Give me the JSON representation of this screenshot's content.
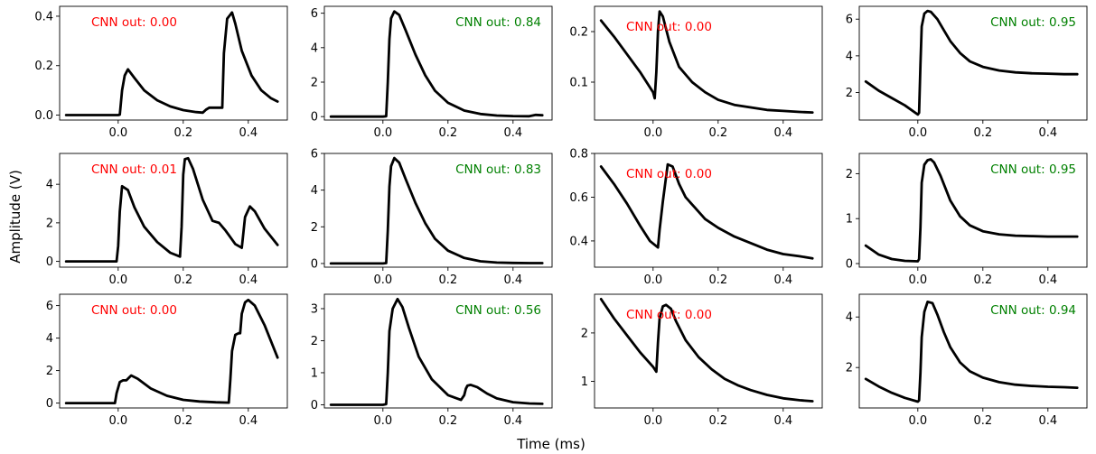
{
  "figure": {
    "xlabel": "Time (ms)",
    "ylabel": "Amplitude (V)",
    "annotation_prefix": "CNN out: ",
    "colors": {
      "reject": "#ff0000",
      "accept": "#008000",
      "trace": "#000000"
    }
  },
  "chart_data": [
    {
      "type": "line",
      "xlim": [
        -0.18,
        0.52
      ],
      "ylim": [
        -0.02,
        0.44
      ],
      "xticks": [
        0.0,
        0.2,
        0.4
      ],
      "yticks": [
        0.0,
        0.2,
        0.4
      ],
      "annotation": "CNN out: 0.00",
      "status": "reject",
      "series": [
        {
          "x": [
            -0.16,
            0.0,
            0.005,
            0.012,
            0.02,
            0.03,
            0.05,
            0.08,
            0.12,
            0.16,
            0.2,
            0.24,
            0.26,
            0.27,
            0.28,
            0.29,
            0.3,
            0.32,
            0.325,
            0.335,
            0.35,
            0.36,
            0.38,
            0.41,
            0.44,
            0.47,
            0.49
          ],
          "y": [
            0.0,
            0.0,
            0.002,
            0.1,
            0.16,
            0.185,
            0.15,
            0.1,
            0.06,
            0.035,
            0.02,
            0.012,
            0.01,
            0.022,
            0.03,
            0.03,
            0.03,
            0.03,
            0.25,
            0.39,
            0.415,
            0.37,
            0.26,
            0.16,
            0.1,
            0.068,
            0.055
          ]
        }
      ]
    },
    {
      "type": "line",
      "xlim": [
        -0.18,
        0.52
      ],
      "ylim": [
        -0.2,
        6.4
      ],
      "xticks": [
        0.0,
        0.2,
        0.4
      ],
      "yticks": [
        0,
        2,
        4,
        6
      ],
      "annotation": "CNN out: 0.84",
      "status": "accept",
      "series": [
        {
          "x": [
            -0.16,
            0.0,
            0.01,
            0.015,
            0.02,
            0.025,
            0.035,
            0.05,
            0.07,
            0.1,
            0.13,
            0.16,
            0.2,
            0.25,
            0.3,
            0.35,
            0.4,
            0.45,
            0.47,
            0.49
          ],
          "y": [
            0.0,
            0.0,
            0.02,
            2.0,
            4.5,
            5.7,
            6.1,
            5.9,
            5.0,
            3.6,
            2.4,
            1.5,
            0.8,
            0.35,
            0.15,
            0.06,
            0.03,
            0.02,
            0.1,
            0.08
          ]
        }
      ]
    },
    {
      "type": "line",
      "xlim": [
        -0.18,
        0.52
      ],
      "ylim": [
        0.025,
        0.25
      ],
      "xticks": [
        0.0,
        0.2,
        0.4
      ],
      "yticks": [
        0.1,
        0.2
      ],
      "annotation": "CNN out: 0.00",
      "status": "reject",
      "series": [
        {
          "x": [
            -0.16,
            -0.12,
            -0.08,
            -0.04,
            0.0,
            0.005,
            0.01,
            0.015,
            0.02,
            0.03,
            0.05,
            0.08,
            0.12,
            0.16,
            0.2,
            0.25,
            0.3,
            0.35,
            0.4,
            0.45,
            0.49
          ],
          "y": [
            0.222,
            0.19,
            0.155,
            0.12,
            0.08,
            0.068,
            0.12,
            0.2,
            0.24,
            0.23,
            0.18,
            0.13,
            0.1,
            0.08,
            0.065,
            0.055,
            0.05,
            0.045,
            0.043,
            0.041,
            0.04
          ]
        }
      ]
    },
    {
      "type": "line",
      "xlim": [
        -0.18,
        0.52
      ],
      "ylim": [
        0.5,
        6.7
      ],
      "xticks": [
        0.0,
        0.2,
        0.4
      ],
      "yticks": [
        2,
        4,
        6
      ],
      "annotation": "CNN out: 0.95",
      "status": "accept",
      "series": [
        {
          "x": [
            -0.16,
            -0.12,
            -0.08,
            -0.04,
            0.0,
            0.004,
            0.008,
            0.012,
            0.02,
            0.03,
            0.04,
            0.06,
            0.08,
            0.1,
            0.13,
            0.16,
            0.2,
            0.25,
            0.3,
            0.35,
            0.4,
            0.45,
            0.49
          ],
          "y": [
            2.6,
            2.1,
            1.7,
            1.3,
            0.8,
            0.9,
            3.5,
            5.6,
            6.3,
            6.45,
            6.4,
            6.0,
            5.4,
            4.8,
            4.15,
            3.7,
            3.4,
            3.2,
            3.1,
            3.05,
            3.03,
            3.0,
            3.0
          ]
        }
      ]
    },
    {
      "type": "line",
      "xlim": [
        -0.18,
        0.52
      ],
      "ylim": [
        -0.3,
        5.6
      ],
      "xticks": [
        0.0,
        0.2,
        0.4
      ],
      "yticks": [
        0,
        2,
        4
      ],
      "annotation": "CNN out: 0.01",
      "status": "reject",
      "series": [
        {
          "x": [
            -0.16,
            -0.005,
            0.0,
            0.005,
            0.012,
            0.03,
            0.05,
            0.08,
            0.12,
            0.16,
            0.19,
            0.195,
            0.2,
            0.205,
            0.215,
            0.23,
            0.26,
            0.29,
            0.31,
            0.33,
            0.36,
            0.38,
            0.385,
            0.39,
            0.405,
            0.42,
            0.45,
            0.49
          ],
          "y": [
            0.0,
            0.0,
            0.8,
            2.6,
            3.9,
            3.7,
            2.8,
            1.8,
            1.0,
            0.45,
            0.25,
            1.8,
            4.5,
            5.3,
            5.35,
            4.8,
            3.2,
            2.1,
            2.0,
            1.6,
            0.9,
            0.7,
            1.5,
            2.3,
            2.85,
            2.6,
            1.7,
            0.85
          ]
        }
      ]
    },
    {
      "type": "line",
      "xlim": [
        -0.18,
        0.52
      ],
      "ylim": [
        -0.2,
        6.0
      ],
      "xticks": [
        0.0,
        0.2,
        0.4
      ],
      "yticks": [
        0,
        2,
        4,
        6
      ],
      "annotation": "CNN out: 0.83",
      "status": "accept",
      "series": [
        {
          "x": [
            -0.16,
            0.0,
            0.01,
            0.015,
            0.02,
            0.025,
            0.035,
            0.05,
            0.07,
            0.1,
            0.13,
            0.16,
            0.2,
            0.25,
            0.3,
            0.35,
            0.4,
            0.45,
            0.49
          ],
          "y": [
            0.0,
            0.0,
            0.02,
            1.8,
            4.2,
            5.3,
            5.75,
            5.5,
            4.6,
            3.3,
            2.2,
            1.35,
            0.7,
            0.3,
            0.12,
            0.05,
            0.03,
            0.02,
            0.02
          ]
        }
      ]
    },
    {
      "type": "line",
      "xlim": [
        -0.18,
        0.52
      ],
      "ylim": [
        0.28,
        0.8
      ],
      "xticks": [
        0.0,
        0.2,
        0.4
      ],
      "yticks": [
        0.4,
        0.6,
        0.8
      ],
      "annotation": "CNN out: 0.00",
      "status": "reject",
      "series": [
        {
          "x": [
            -0.16,
            -0.12,
            -0.08,
            -0.04,
            -0.01,
            0.015,
            0.02,
            0.03,
            0.045,
            0.06,
            0.08,
            0.1,
            0.13,
            0.16,
            0.2,
            0.25,
            0.3,
            0.35,
            0.4,
            0.45,
            0.49
          ],
          "y": [
            0.74,
            0.66,
            0.57,
            0.47,
            0.4,
            0.37,
            0.45,
            0.58,
            0.75,
            0.74,
            0.66,
            0.6,
            0.55,
            0.5,
            0.46,
            0.42,
            0.39,
            0.36,
            0.34,
            0.33,
            0.32
          ]
        }
      ]
    },
    {
      "type": "line",
      "xlim": [
        -0.18,
        0.52
      ],
      "ylim": [
        -0.08,
        2.45
      ],
      "xticks": [
        0.0,
        0.2,
        0.4
      ],
      "yticks": [
        0,
        1,
        2
      ],
      "annotation": "CNN out: 0.95",
      "status": "accept",
      "series": [
        {
          "x": [
            -0.16,
            -0.12,
            -0.08,
            -0.04,
            0.0,
            0.004,
            0.008,
            0.012,
            0.02,
            0.03,
            0.04,
            0.05,
            0.07,
            0.1,
            0.13,
            0.16,
            0.2,
            0.25,
            0.3,
            0.35,
            0.4,
            0.45,
            0.49
          ],
          "y": [
            0.4,
            0.2,
            0.1,
            0.06,
            0.05,
            0.1,
            0.8,
            1.8,
            2.2,
            2.3,
            2.32,
            2.25,
            1.95,
            1.4,
            1.05,
            0.85,
            0.72,
            0.65,
            0.62,
            0.61,
            0.6,
            0.6,
            0.6
          ]
        }
      ]
    },
    {
      "type": "line",
      "xlim": [
        -0.18,
        0.52
      ],
      "ylim": [
        -0.3,
        6.7
      ],
      "xticks": [
        0.0,
        0.2,
        0.4
      ],
      "yticks": [
        0,
        2,
        4,
        6
      ],
      "annotation": "CNN out: 0.00",
      "status": "reject",
      "series": [
        {
          "x": [
            -0.16,
            -0.01,
            -0.005,
            0.005,
            0.015,
            0.025,
            0.04,
            0.06,
            0.1,
            0.15,
            0.2,
            0.25,
            0.3,
            0.34,
            0.345,
            0.35,
            0.36,
            0.37,
            0.375,
            0.38,
            0.39,
            0.4,
            0.42,
            0.45,
            0.49
          ],
          "y": [
            0.0,
            0.0,
            0.6,
            1.3,
            1.4,
            1.4,
            1.7,
            1.5,
            0.9,
            0.45,
            0.2,
            0.1,
            0.05,
            0.03,
            1.5,
            3.2,
            4.2,
            4.3,
            4.3,
            5.5,
            6.2,
            6.35,
            6.0,
            4.8,
            2.8
          ]
        }
      ]
    },
    {
      "type": "line",
      "xlim": [
        -0.18,
        0.52
      ],
      "ylim": [
        -0.1,
        3.45
      ],
      "xticks": [
        0.0,
        0.2,
        0.4
      ],
      "yticks": [
        0,
        1,
        2,
        3
      ],
      "annotation": "CNN out: 0.56",
      "status": "accept",
      "series": [
        {
          "x": [
            -0.16,
            0.0,
            0.01,
            0.015,
            0.02,
            0.03,
            0.045,
            0.06,
            0.08,
            0.11,
            0.15,
            0.2,
            0.24,
            0.25,
            0.255,
            0.26,
            0.27,
            0.29,
            0.32,
            0.35,
            0.4,
            0.45,
            0.49
          ],
          "y": [
            0.0,
            0.0,
            0.02,
            1.0,
            2.3,
            3.0,
            3.3,
            3.05,
            2.4,
            1.5,
            0.8,
            0.3,
            0.15,
            0.3,
            0.5,
            0.6,
            0.62,
            0.55,
            0.35,
            0.2,
            0.08,
            0.04,
            0.03
          ]
        }
      ]
    },
    {
      "type": "line",
      "xlim": [
        -0.18,
        0.52
      ],
      "ylim": [
        0.45,
        2.8
      ],
      "xticks": [
        0.0,
        0.2,
        0.4
      ],
      "yticks": [
        1,
        2
      ],
      "annotation": "CNN out: 0.00",
      "status": "reject",
      "series": [
        {
          "x": [
            -0.16,
            -0.12,
            -0.08,
            -0.04,
            0.0,
            0.01,
            0.015,
            0.02,
            0.03,
            0.04,
            0.055,
            0.07,
            0.1,
            0.14,
            0.18,
            0.22,
            0.26,
            0.3,
            0.35,
            0.4,
            0.45,
            0.49
          ],
          "y": [
            2.7,
            2.3,
            1.95,
            1.6,
            1.3,
            1.2,
            1.8,
            2.3,
            2.55,
            2.58,
            2.5,
            2.25,
            1.85,
            1.5,
            1.25,
            1.05,
            0.92,
            0.82,
            0.72,
            0.65,
            0.61,
            0.59
          ]
        }
      ]
    },
    {
      "type": "line",
      "xlim": [
        -0.18,
        0.52
      ],
      "ylim": [
        0.4,
        4.9
      ],
      "xticks": [
        0.0,
        0.2,
        0.4
      ],
      "yticks": [
        2,
        4
      ],
      "annotation": "CNN out: 0.94",
      "status": "accept",
      "series": [
        {
          "x": [
            -0.16,
            -0.12,
            -0.08,
            -0.04,
            0.0,
            0.004,
            0.008,
            0.012,
            0.02,
            0.03,
            0.045,
            0.06,
            0.08,
            0.1,
            0.13,
            0.16,
            0.2,
            0.25,
            0.3,
            0.35,
            0.4,
            0.45,
            0.49
          ],
          "y": [
            1.55,
            1.25,
            1.0,
            0.8,
            0.65,
            0.7,
            1.8,
            3.2,
            4.2,
            4.6,
            4.55,
            4.1,
            3.4,
            2.8,
            2.2,
            1.85,
            1.6,
            1.42,
            1.32,
            1.27,
            1.24,
            1.22,
            1.2
          ]
        }
      ]
    }
  ]
}
